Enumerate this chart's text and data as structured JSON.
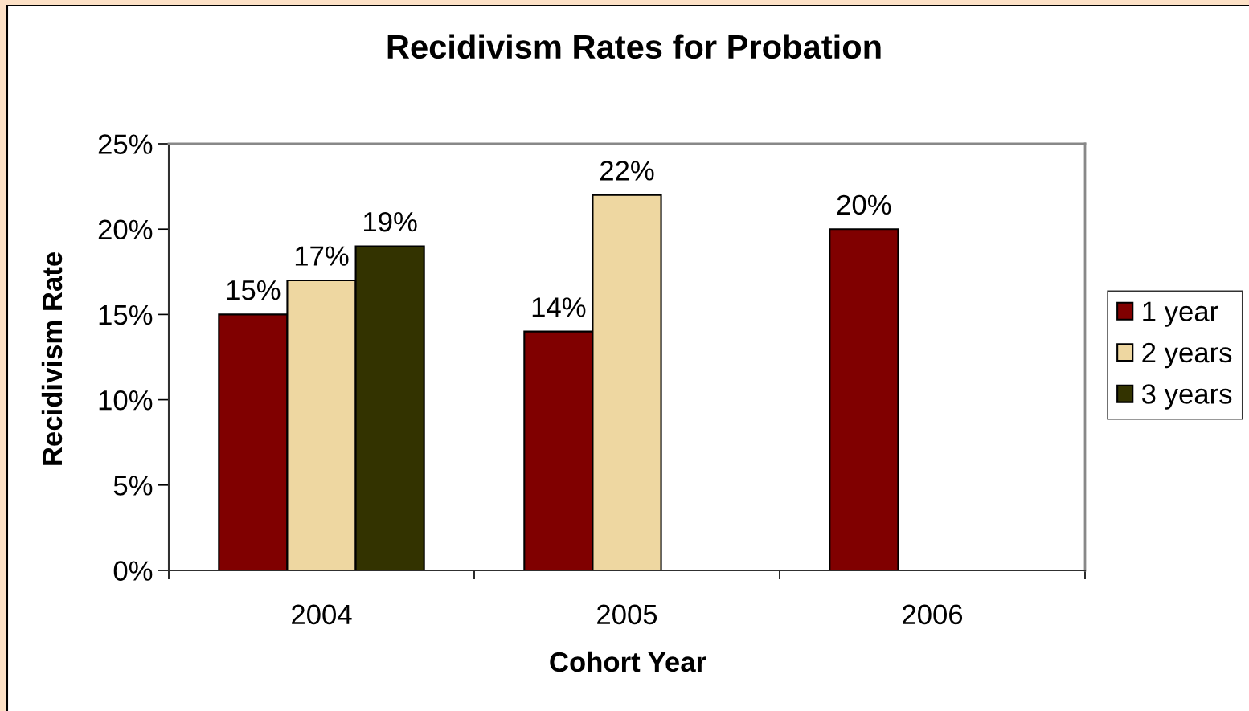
{
  "chart_data": {
    "type": "bar",
    "title": "Recidivism Rates for Probation",
    "xlabel": "Cohort Year",
    "ylabel": "Recidivism Rate",
    "categories": [
      "2004",
      "2005",
      "2006"
    ],
    "series": [
      {
        "name": "1 year",
        "color": "#800000",
        "values": [
          15,
          14,
          20
        ],
        "value_labels": [
          "15%",
          "14%",
          "20%"
        ]
      },
      {
        "name": "2 years",
        "color": "#eed7a1",
        "values": [
          17,
          22,
          null
        ],
        "value_labels": [
          "17%",
          "22%",
          null
        ]
      },
      {
        "name": "3 years",
        "color": "#333300",
        "values": [
          19,
          null,
          null
        ],
        "value_labels": [
          "19%",
          null,
          null
        ]
      }
    ],
    "ylim": [
      0,
      25
    ],
    "yticks": [
      {
        "value": 0,
        "label": "0%"
      },
      {
        "value": 5,
        "label": "5%"
      },
      {
        "value": 10,
        "label": "10%"
      },
      {
        "value": 15,
        "label": "15%"
      },
      {
        "value": 20,
        "label": "20%"
      },
      {
        "value": 25,
        "label": "25%"
      }
    ],
    "legend": "right"
  }
}
